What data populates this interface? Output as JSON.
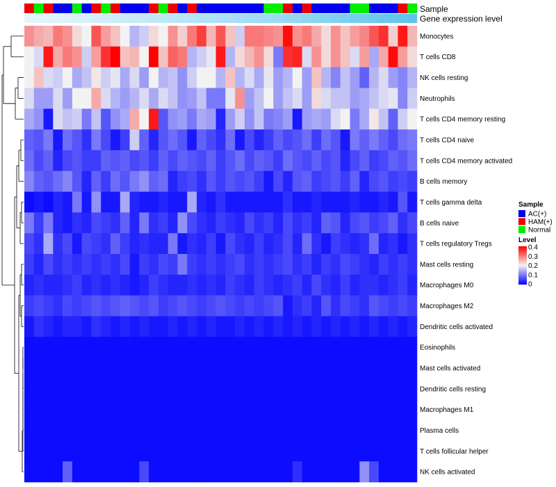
{
  "chart_data": {
    "type": "heatmap",
    "annotation_labels": {
      "sample": "Sample",
      "gene": "Gene expression level"
    },
    "legend": {
      "sample_title": "Sample",
      "sample_groups": [
        {
          "name": "AC(+)",
          "color": "#0000ee"
        },
        {
          "name": "HAM(+)",
          "color": "#ee0000"
        },
        {
          "name": "Normal",
          "color": "#00ee00"
        }
      ],
      "level_title": "Level",
      "level_ticks": [
        "0.4",
        "0.3",
        "0.2",
        "0.1",
        "0"
      ],
      "level_range": [
        0,
        0.4
      ],
      "placement": "right"
    },
    "colors": {
      "low": "#0000ff",
      "mid": "#f2f2f2",
      "high": "#ff0000",
      "gene_low": "#eaf6fb",
      "gene_high": "#56c1ea"
    },
    "sample_groups": [
      "HAM(+)",
      "Normal",
      "HAM(+)",
      "AC(+)",
      "AC(+)",
      "Normal",
      "AC(+)",
      "HAM(+)",
      "Normal",
      "HAM(+)",
      "AC(+)",
      "AC(+)",
      "AC(+)",
      "HAM(+)",
      "Normal",
      "HAM(+)",
      "AC(+)",
      "HAM(+)",
      "AC(+)",
      "AC(+)",
      "AC(+)",
      "AC(+)",
      "AC(+)",
      "AC(+)",
      "AC(+)",
      "Normal",
      "Normal",
      "HAM(+)",
      "AC(+)",
      "HAM(+)",
      "AC(+)",
      "AC(+)",
      "AC(+)",
      "AC(+)",
      "Normal",
      "Normal",
      "AC(+)",
      "AC(+)",
      "AC(+)",
      "HAM(+)",
      "Normal"
    ],
    "gene_expression": [
      0.02,
      0.04,
      0.05,
      0.07,
      0.09,
      0.11,
      0.13,
      0.15,
      0.17,
      0.19,
      0.21,
      0.23,
      0.25,
      0.27,
      0.29,
      0.31,
      0.33,
      0.35,
      0.37,
      0.39,
      0.41,
      0.43,
      0.45,
      0.47,
      0.49,
      0.51,
      0.53,
      0.56,
      0.59,
      0.62,
      0.65,
      0.68,
      0.71,
      0.74,
      0.77,
      0.8,
      0.83,
      0.86,
      0.89,
      0.92,
      0.95
    ],
    "rows": [
      "Monocytes",
      "T cells CD8",
      "NK cells resting",
      "Neutrophils",
      "T cells CD4 memory resting",
      "T cells CD4 naive",
      "T cells CD4 memory activated",
      "B cells memory",
      "T cells gamma delta",
      "B cells naive",
      "T cells regulatory  Tregs",
      "Mast cells resting",
      "Macrophages M0",
      "Macrophages M2",
      "Dendritic cells activated",
      "Eosinophils",
      "Mast cells activated",
      "Dendritic cells resting",
      "Macrophages M1",
      "Plasma cells",
      "T cells follicular helper",
      "NK cells activated"
    ],
    "values": [
      [
        0.28,
        0.26,
        0.25,
        0.3,
        0.28,
        0.22,
        0.2,
        0.33,
        0.27,
        0.24,
        0.2,
        0.15,
        0.17,
        0.22,
        0.2,
        0.28,
        0.23,
        0.3,
        0.35,
        0.25,
        0.33,
        0.24,
        0.17,
        0.3,
        0.3,
        0.29,
        0.28,
        0.39,
        0.28,
        0.3,
        0.26,
        0.22,
        0.28,
        0.24,
        0.27,
        0.29,
        0.33,
        0.36,
        0.23,
        0.38,
        0.25
      ],
      [
        0.2,
        0.18,
        0.38,
        0.26,
        0.3,
        0.28,
        0.17,
        0.27,
        0.36,
        0.4,
        0.24,
        0.25,
        0.2,
        0.4,
        0.24,
        0.32,
        0.3,
        0.15,
        0.17,
        0.19,
        0.38,
        0.15,
        0.22,
        0.25,
        0.28,
        0.22,
        0.1,
        0.36,
        0.37,
        0.18,
        0.28,
        0.22,
        0.28,
        0.24,
        0.18,
        0.27,
        0.14,
        0.26,
        0.39,
        0.27,
        0.22
      ],
      [
        0.2,
        0.24,
        0.18,
        0.17,
        0.2,
        0.14,
        0.16,
        0.21,
        0.17,
        0.19,
        0.14,
        0.18,
        0.13,
        0.2,
        0.15,
        0.16,
        0.12,
        0.17,
        0.2,
        0.2,
        0.15,
        0.24,
        0.15,
        0.18,
        0.14,
        0.19,
        0.13,
        0.15,
        0.2,
        0.13,
        0.24,
        0.15,
        0.11,
        0.16,
        0.13,
        0.08,
        0.15,
        0.18,
        0.13,
        0.11,
        0.15
      ],
      [
        0.18,
        0.13,
        0.13,
        0.18,
        0.13,
        0.2,
        0.2,
        0.26,
        0.18,
        0.15,
        0.13,
        0.15,
        0.18,
        0.14,
        0.18,
        0.16,
        0.12,
        0.13,
        0.16,
        0.1,
        0.1,
        0.19,
        0.28,
        0.13,
        0.16,
        0.2,
        0.13,
        0.16,
        0.18,
        0.13,
        0.22,
        0.18,
        0.16,
        0.16,
        0.13,
        0.14,
        0.16,
        0.18,
        0.19,
        0.11,
        0.17
      ],
      [
        0.14,
        0.12,
        0.02,
        0.18,
        0.16,
        0.17,
        0.1,
        0.16,
        0.07,
        0.12,
        0.14,
        0.26,
        0.2,
        0.38,
        0.07,
        0.12,
        0.13,
        0.1,
        0.14,
        0.13,
        0.03,
        0.13,
        0.17,
        0.12,
        0.16,
        0.1,
        0.11,
        0.13,
        0.02,
        0.13,
        0.14,
        0.13,
        0.18,
        0.2,
        0.1,
        0.14,
        0.21,
        0.16,
        0.08,
        0.17,
        0.2
      ],
      [
        0.08,
        0.07,
        0.1,
        0.02,
        0.09,
        0.07,
        0.04,
        0.1,
        0.06,
        0.02,
        0.05,
        0.17,
        0.08,
        0.03,
        0.07,
        0.09,
        0.07,
        0.02,
        0.08,
        0.06,
        0.04,
        0.09,
        0.02,
        0.06,
        0.03,
        0.05,
        0.08,
        0.06,
        0.07,
        0.09,
        0.05,
        0.09,
        0.07,
        0.02,
        0.1,
        0.08,
        0.1,
        0.08,
        0.06,
        0.09,
        0.1
      ],
      [
        0.09,
        0.06,
        0.08,
        0.03,
        0.06,
        0.07,
        0.05,
        0.05,
        0.08,
        0.07,
        0.08,
        0.06,
        0.07,
        0.05,
        0.08,
        0.06,
        0.08,
        0.07,
        0.06,
        0.08,
        0.05,
        0.07,
        0.09,
        0.06,
        0.08,
        0.07,
        0.05,
        0.09,
        0.07,
        0.06,
        0.08,
        0.06,
        0.07,
        0.03,
        0.06,
        0.08,
        0.05,
        0.06,
        0.08,
        0.07,
        0.09
      ],
      [
        0.11,
        0.08,
        0.07,
        0.09,
        0.11,
        0.07,
        0.03,
        0.08,
        0.05,
        0.09,
        0.07,
        0.1,
        0.12,
        0.08,
        0.09,
        0.03,
        0.05,
        0.06,
        0.04,
        0.07,
        0.05,
        0.07,
        0.06,
        0.07,
        0.05,
        0.02,
        0.06,
        0.03,
        0.07,
        0.08,
        0.05,
        0.06,
        0.07,
        0.05,
        0.08,
        0.03,
        0.06,
        0.07,
        0.05,
        0.06,
        0.05
      ],
      [
        0.01,
        0.02,
        0.01,
        0.03,
        0.02,
        0.1,
        0.02,
        0.12,
        0.02,
        0.02,
        0.14,
        0.03,
        0.02,
        0.02,
        0.03,
        0.02,
        0.02,
        0.14,
        0.03,
        0.02,
        0.04,
        0.02,
        0.02,
        0.02,
        0.02,
        0.02,
        0.02,
        0.04,
        0.02,
        0.02,
        0.03,
        0.02,
        0.02,
        0.02,
        0.03,
        0.02,
        0.02,
        0.03,
        0.02,
        0.07,
        0.02
      ],
      [
        0.1,
        0.05,
        0.1,
        0.03,
        0.02,
        0.04,
        0.03,
        0.06,
        0.05,
        0.04,
        0.08,
        0.03,
        0.1,
        0.04,
        0.05,
        0.03,
        0.12,
        0.06,
        0.04,
        0.03,
        0.05,
        0.04,
        0.03,
        0.06,
        0.04,
        0.05,
        0.03,
        0.06,
        0.04,
        0.05,
        0.03,
        0.08,
        0.07,
        0.03,
        0.06,
        0.07,
        0.05,
        0.06,
        0.08,
        0.04,
        0.06
      ],
      [
        0.06,
        0.04,
        0.14,
        0.04,
        0.06,
        0.02,
        0.06,
        0.05,
        0.04,
        0.08,
        0.05,
        0.03,
        0.04,
        0.03,
        0.03,
        0.1,
        0.02,
        0.04,
        0.03,
        0.05,
        0.02,
        0.06,
        0.04,
        0.03,
        0.05,
        0.03,
        0.04,
        0.06,
        0.03,
        0.09,
        0.04,
        0.02,
        0.05,
        0.04,
        0.03,
        0.04,
        0.09,
        0.03,
        0.04,
        0.02,
        0.04
      ],
      [
        0.05,
        0.03,
        0.06,
        0.04,
        0.05,
        0.04,
        0.05,
        0.04,
        0.05,
        0.04,
        0.06,
        0.02,
        0.05,
        0.04,
        0.06,
        0.05,
        0.1,
        0.05,
        0.04,
        0.05,
        0.04,
        0.05,
        0.06,
        0.04,
        0.05,
        0.04,
        0.05,
        0.06,
        0.04,
        0.05,
        0.03,
        0.05,
        0.04,
        0.06,
        0.05,
        0.04,
        0.03,
        0.05,
        0.04,
        0.05,
        0.04
      ],
      [
        0.03,
        0.04,
        0.03,
        0.03,
        0.04,
        0.05,
        0.03,
        0.04,
        0.03,
        0.04,
        0.03,
        0.02,
        0.03,
        0.05,
        0.04,
        0.03,
        0.03,
        0.04,
        0.03,
        0.04,
        0.03,
        0.05,
        0.04,
        0.03,
        0.05,
        0.04,
        0.03,
        0.04,
        0.05,
        0.03,
        0.06,
        0.04,
        0.03,
        0.05,
        0.03,
        0.04,
        0.04,
        0.03,
        0.04,
        0.05,
        0.03
      ],
      [
        0.05,
        0.06,
        0.05,
        0.04,
        0.06,
        0.05,
        0.06,
        0.07,
        0.06,
        0.07,
        0.08,
        0.07,
        0.06,
        0.07,
        0.05,
        0.06,
        0.07,
        0.06,
        0.05,
        0.06,
        0.07,
        0.06,
        0.05,
        0.06,
        0.05,
        0.06,
        0.07,
        0.02,
        0.04,
        0.05,
        0.03,
        0.07,
        0.04,
        0.06,
        0.05,
        0.04,
        0.07,
        0.06,
        0.05,
        0.06,
        0.05
      ],
      [
        0.02,
        0.04,
        0.03,
        0.02,
        0.03,
        0.03,
        0.02,
        0.04,
        0.03,
        0.02,
        0.03,
        0.02,
        0.03,
        0.02,
        0.02,
        0.03,
        0.02,
        0.03,
        0.02,
        0.03,
        0.02,
        0.02,
        0.03,
        0.02,
        0.03,
        0.02,
        0.03,
        0.02,
        0.03,
        0.02,
        0.03,
        0.02,
        0.03,
        0.02,
        0.03,
        0.02,
        0.03,
        0.02,
        0.03,
        0.02,
        0.03
      ],
      [
        0.01,
        0.01,
        0.01,
        0.01,
        0.01,
        0.01,
        0.01,
        0.01,
        0.01,
        0.01,
        0.01,
        0.01,
        0.01,
        0.01,
        0.01,
        0.01,
        0.01,
        0.01,
        0.01,
        0.01,
        0.01,
        0.01,
        0.01,
        0.01,
        0.01,
        0.01,
        0.01,
        0.01,
        0.01,
        0.01,
        0.01,
        0.01,
        0.01,
        0.01,
        0.01,
        0.01,
        0.01,
        0.01,
        0.01,
        0.01,
        0.01
      ],
      [
        0.01,
        0.01,
        0.01,
        0.01,
        0.01,
        0.01,
        0.01,
        0.01,
        0.01,
        0.01,
        0.01,
        0.01,
        0.01,
        0.01,
        0.01,
        0.01,
        0.01,
        0.01,
        0.01,
        0.01,
        0.01,
        0.01,
        0.01,
        0.01,
        0.01,
        0.01,
        0.01,
        0.01,
        0.01,
        0.01,
        0.01,
        0.01,
        0.01,
        0.01,
        0.01,
        0.01,
        0.01,
        0.01,
        0.01,
        0.01,
        0.01
      ],
      [
        0.01,
        0.01,
        0.01,
        0.01,
        0.01,
        0.01,
        0.01,
        0.01,
        0.01,
        0.01,
        0.01,
        0.01,
        0.01,
        0.01,
        0.01,
        0.01,
        0.01,
        0.01,
        0.01,
        0.01,
        0.01,
        0.01,
        0.01,
        0.01,
        0.01,
        0.01,
        0.01,
        0.01,
        0.01,
        0.01,
        0.01,
        0.01,
        0.01,
        0.01,
        0.01,
        0.01,
        0.01,
        0.01,
        0.01,
        0.01,
        0.01
      ],
      [
        0.01,
        0.01,
        0.01,
        0.01,
        0.01,
        0.01,
        0.01,
        0.01,
        0.01,
        0.01,
        0.01,
        0.01,
        0.01,
        0.01,
        0.01,
        0.01,
        0.01,
        0.01,
        0.01,
        0.01,
        0.01,
        0.01,
        0.01,
        0.01,
        0.01,
        0.01,
        0.01,
        0.01,
        0.01,
        0.01,
        0.01,
        0.01,
        0.01,
        0.01,
        0.01,
        0.01,
        0.01,
        0.01,
        0.01,
        0.01,
        0.01
      ],
      [
        0.01,
        0.01,
        0.01,
        0.01,
        0.01,
        0.01,
        0.01,
        0.01,
        0.01,
        0.01,
        0.01,
        0.01,
        0.01,
        0.01,
        0.01,
        0.01,
        0.01,
        0.01,
        0.01,
        0.01,
        0.01,
        0.01,
        0.01,
        0.01,
        0.01,
        0.01,
        0.01,
        0.01,
        0.01,
        0.01,
        0.01,
        0.01,
        0.01,
        0.01,
        0.01,
        0.01,
        0.01,
        0.01,
        0.01,
        0.01,
        0.01
      ],
      [
        0.01,
        0.01,
        0.01,
        0.01,
        0.01,
        0.01,
        0.01,
        0.01,
        0.01,
        0.01,
        0.01,
        0.01,
        0.01,
        0.01,
        0.01,
        0.01,
        0.01,
        0.01,
        0.01,
        0.01,
        0.01,
        0.01,
        0.01,
        0.01,
        0.01,
        0.01,
        0.01,
        0.01,
        0.01,
        0.01,
        0.01,
        0.01,
        0.01,
        0.01,
        0.01,
        0.01,
        0.01,
        0.01,
        0.01,
        0.01,
        0.01
      ],
      [
        0.01,
        0.01,
        0.01,
        0.01,
        0.08,
        0.01,
        0.01,
        0.01,
        0.01,
        0.01,
        0.01,
        0.01,
        0.06,
        0.01,
        0.01,
        0.01,
        0.01,
        0.01,
        0.01,
        0.01,
        0.01,
        0.01,
        0.01,
        0.01,
        0.01,
        0.01,
        0.01,
        0.01,
        0.04,
        0.01,
        0.01,
        0.01,
        0.01,
        0.01,
        0.01,
        0.12,
        0.06,
        0.01,
        0.01,
        0.01,
        0.01
      ]
    ]
  }
}
